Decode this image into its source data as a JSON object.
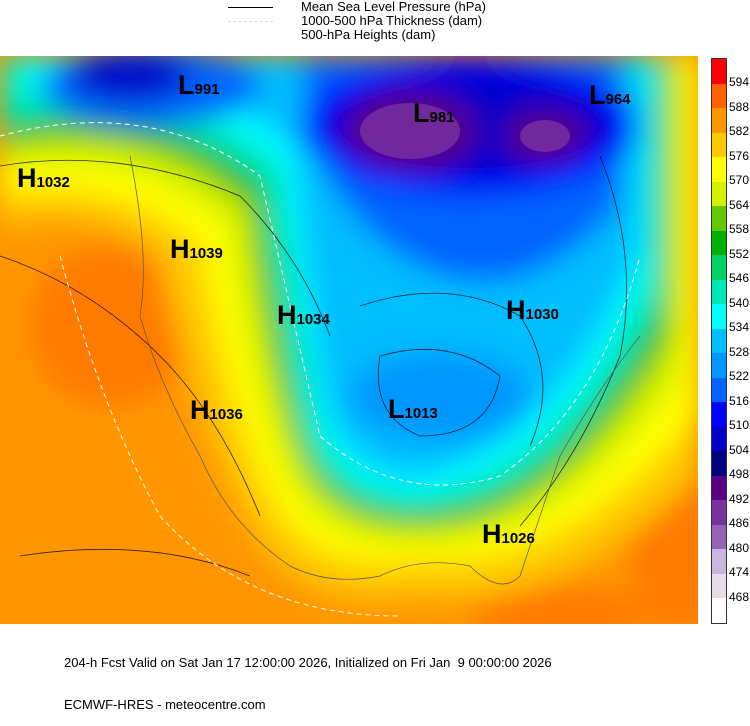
{
  "legend": [
    {
      "label": "Mean Sea Level Pressure (hPa)",
      "style": "solid-black"
    },
    {
      "label": "1000-500 hPa Thickness (dam)",
      "style": "dashed-white"
    },
    {
      "label": "500-hPa Heights (dam)",
      "style": "color-fill"
    }
  ],
  "colorbar": {
    "levels": [
      "594",
      "588",
      "582",
      "576",
      "570",
      "564",
      "558",
      "552",
      "546",
      "540",
      "534",
      "528",
      "522",
      "516",
      "510",
      "504",
      "498",
      "492",
      "486",
      "480",
      "474",
      "468"
    ],
    "colors": [
      "#ff0000",
      "#ff6000",
      "#ff9600",
      "#ffc800",
      "#ffff00",
      "#d2f000",
      "#64c800",
      "#00b000",
      "#00d264",
      "#00e6b4",
      "#00ffff",
      "#00beff",
      "#0096ff",
      "#0064ff",
      "#0000ff",
      "#0000c8",
      "#000080",
      "#5a0082",
      "#7832a0",
      "#9664b4",
      "#c8b4dc",
      "#e6dce6",
      "#ffffff"
    ]
  },
  "centers": [
    {
      "type": "L",
      "value": "991"
    },
    {
      "type": "H",
      "value": "1032"
    },
    {
      "type": "H",
      "value": "1039"
    },
    {
      "type": "H",
      "value": "1034"
    },
    {
      "type": "H",
      "value": "1036"
    },
    {
      "type": "L",
      "value": "981"
    },
    {
      "type": "L",
      "value": "964"
    },
    {
      "type": "H",
      "value": "1030"
    },
    {
      "type": "L",
      "value": "1013"
    },
    {
      "type": "H",
      "value": "1026"
    }
  ],
  "footer": {
    "line1": "204-h Fcst Valid on Sat Jan 17 12:00:00 2026, Initialized on Fri Jan  9 00:00:00 2026",
    "line2": "ECMWF-HRES - meteocentre.com"
  }
}
